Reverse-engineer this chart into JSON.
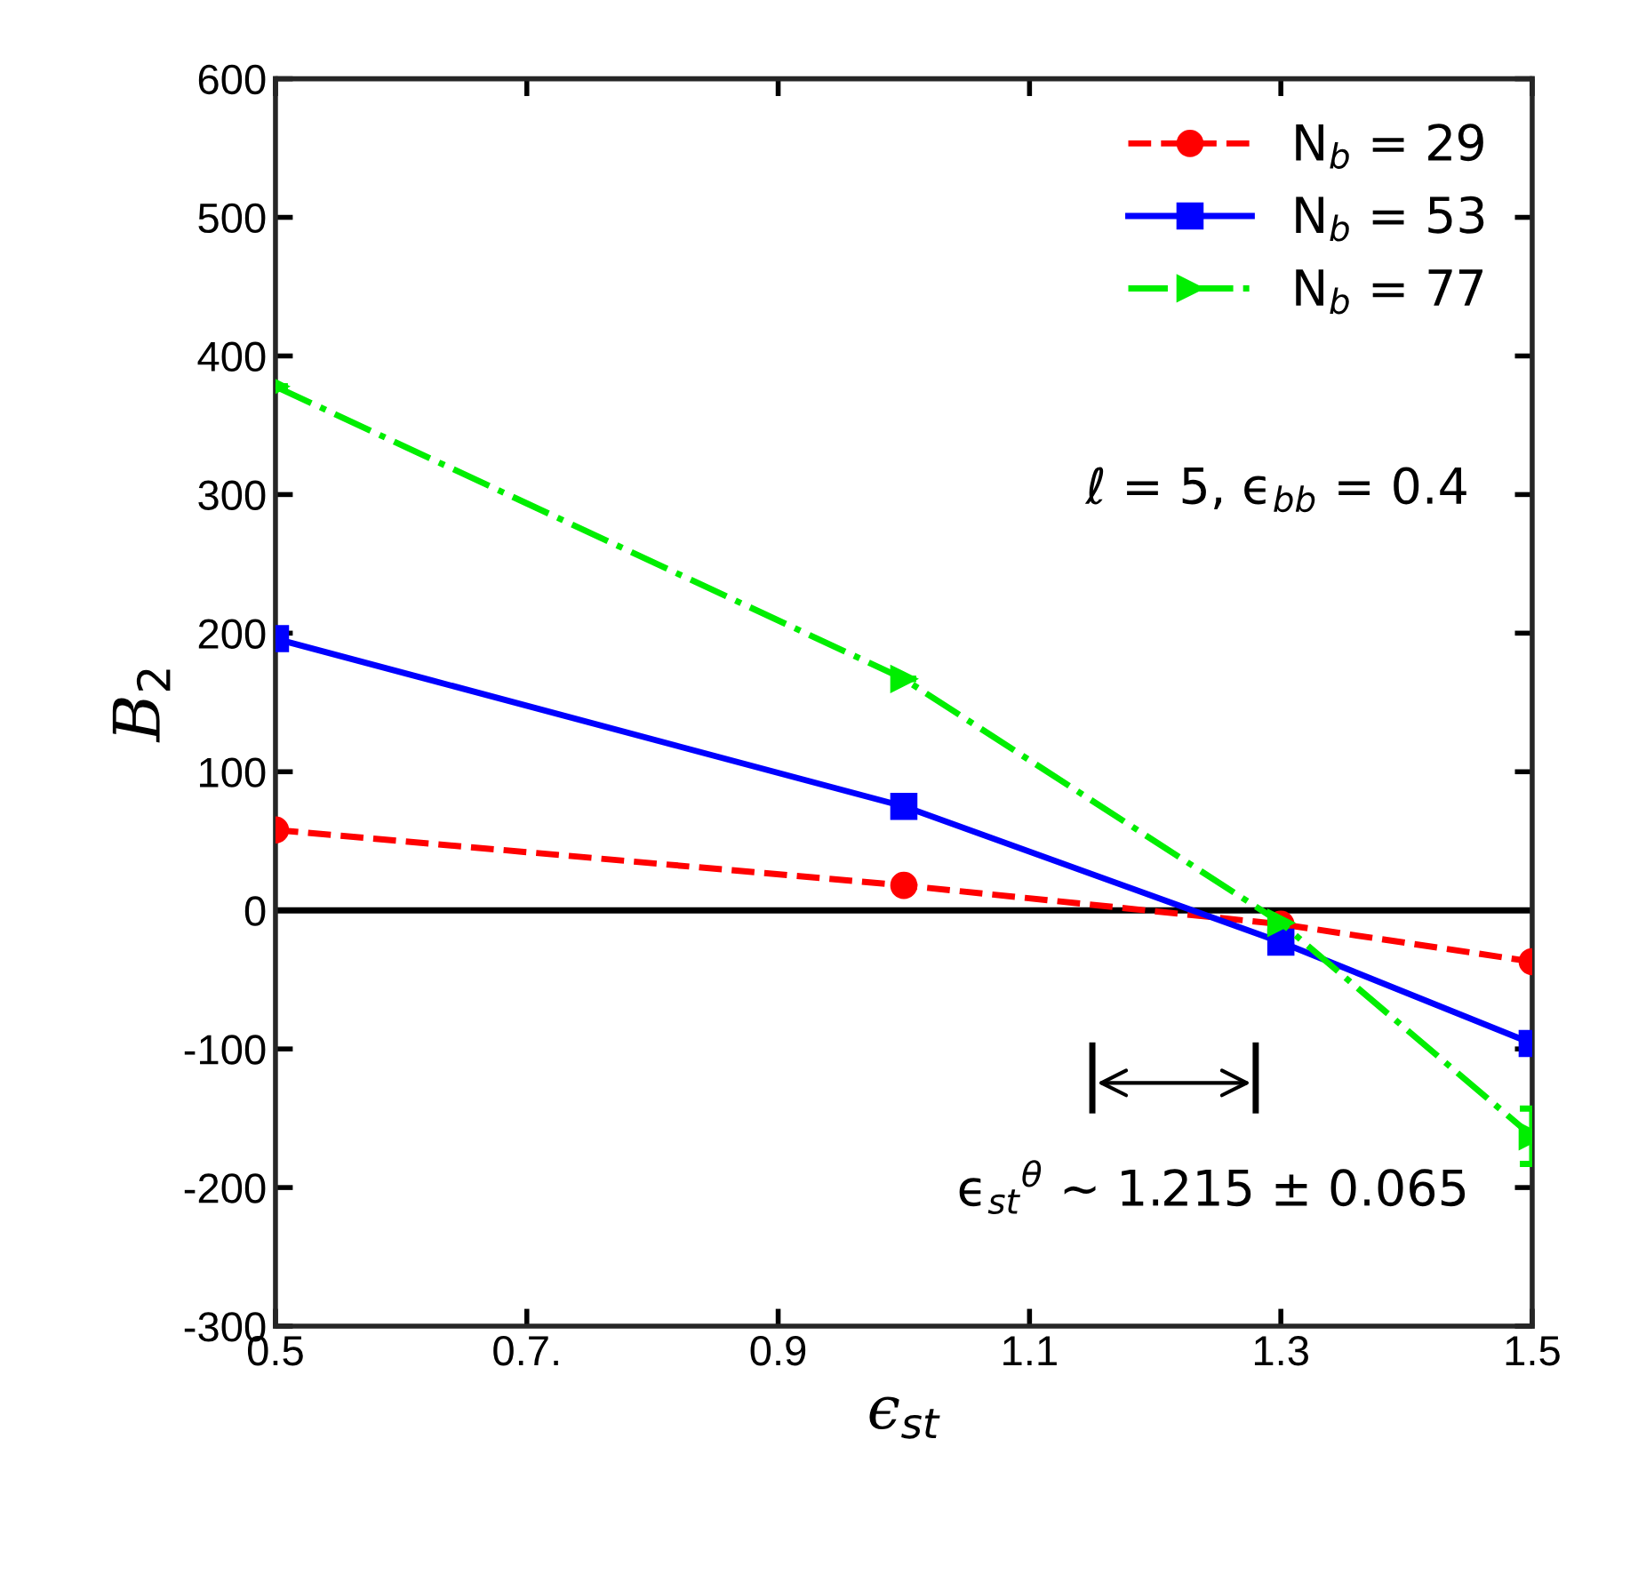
{
  "chart_data": {
    "type": "line",
    "xlabel": "ϵ$_{st}$",
    "ylabel": "B$_{2}$",
    "x": [
      0.5,
      1.0,
      1.3,
      1.5
    ],
    "series": [
      {
        "name": "N$_{b}$ = 29",
        "color": "#ff0000",
        "values": [
          58,
          18,
          -10,
          -37
        ],
        "marker": "circle",
        "line_style": "dashed"
      },
      {
        "name": "N$_{b}$ = 53",
        "color": "#0000ff",
        "values": [
          196,
          75,
          -23,
          -96
        ],
        "marker": "square",
        "line_style": "solid"
      },
      {
        "name": "N$_{b}$ = 77",
        "color": "#00ee00",
        "values": [
          378,
          167,
          -9,
          -163
        ],
        "errors": [
          null,
          null,
          null,
          20
        ],
        "marker": "triangle",
        "line_style": "dashdot"
      }
    ],
    "xlim": [
      0.5,
      1.5
    ],
    "xticks": [
      0.5,
      {
        "value": 0.7,
        "label": "0.7."
      },
      0.9,
      1.1,
      1.3,
      1.5
    ],
    "ylim": [
      -300,
      600
    ],
    "yticks": [
      -300,
      -200,
      -100,
      0,
      100,
      200,
      300,
      400,
      500,
      600
    ],
    "ref_lines": [
      {
        "axis": "y",
        "value": 0,
        "color": "#000000"
      }
    ],
    "annotations": [
      "ℓ = 5, ϵ$_{bb}$ = 0.4",
      "ϵ$_{st}$$^{θ}$ ∼ 1.215 ± 0.065"
    ],
    "legend": "top right",
    "grid": false
  }
}
